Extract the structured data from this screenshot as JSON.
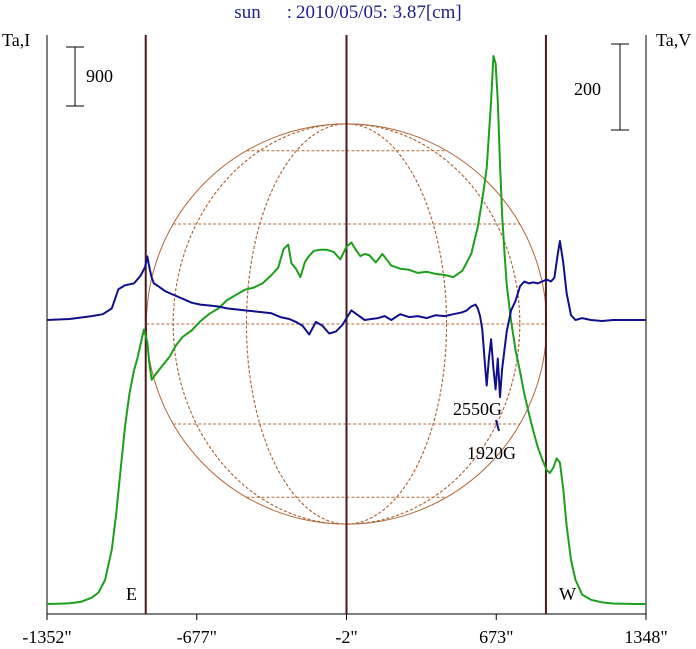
{
  "title": {
    "object": "sun",
    "separator": ":",
    "info": "2010/05/05: 3.87[cm]",
    "color": "#1f1f8f"
  },
  "axes": {
    "left_label": "Ta,I",
    "right_label": "Ta,V",
    "left_scale_bar": "900",
    "right_scale_bar": "200"
  },
  "markers": {
    "east": "E",
    "west": "W"
  },
  "annotations": {
    "field_1": "2550G",
    "field_2": "1920G"
  },
  "colors": {
    "intensity": "#1ca01c",
    "polarization": "#10108c",
    "limb_lines": "#4a1a1a",
    "grid": "#b0683a",
    "frame": "#000000"
  },
  "chart_data": {
    "type": "line",
    "title": "sun : 2010/05/05: 3.87[cm]",
    "xlabel": "",
    "ylabel_left": "Ta,I",
    "ylabel_right": "Ta,V",
    "x_ticks": [
      -1352,
      -677,
      -2,
      673,
      1348
    ],
    "x_tick_labels": [
      "-1352\"",
      "-677\"",
      "-2\"",
      "673\"",
      "1348\""
    ],
    "xlim": [
      -1352,
      1348
    ],
    "limb_positions": [
      -907,
      -2,
      897
    ],
    "grid": false,
    "legend": "none",
    "series": [
      {
        "key": "intensity",
        "x": [
          -1352,
          -1300,
          -1250,
          -1200,
          -1150,
          -1120,
          -1090,
          -1060,
          -1040,
          -1020,
          -1000,
          -980,
          -960,
          -945,
          -930,
          -915,
          -900,
          -890,
          -880,
          -860,
          -830,
          -800,
          -770,
          -740,
          -700,
          -660,
          -620,
          -580,
          -540,
          -500,
          -460,
          -420,
          -380,
          -340,
          -310,
          -285,
          -265,
          -250,
          -230,
          -210,
          -190,
          -175,
          -150,
          -120,
          -90,
          -60,
          -30,
          -2,
          20,
          40,
          60,
          80,
          100,
          130,
          160,
          200,
          240,
          280,
          320,
          360,
          400,
          440,
          480,
          520,
          560,
          590,
          610,
          630,
          650,
          660,
          670,
          680,
          690,
          700,
          710,
          720,
          740,
          760,
          780,
          800,
          820,
          840,
          860,
          880,
          900,
          915,
          930,
          945,
          960,
          975,
          990,
          1010,
          1030,
          1060,
          1100,
          1150,
          1200,
          1250,
          1300,
          1348
        ],
        "y": [
          0,
          3,
          8,
          20,
          60,
          110,
          230,
          520,
          860,
          1290,
          1700,
          2010,
          2230,
          2340,
          2480,
          2620,
          2500,
          2280,
          2140,
          2200,
          2280,
          2360,
          2470,
          2550,
          2610,
          2700,
          2770,
          2820,
          2900,
          2950,
          3000,
          3020,
          3060,
          3140,
          3210,
          3390,
          3430,
          3250,
          3200,
          3120,
          3260,
          3310,
          3370,
          3380,
          3380,
          3360,
          3290,
          3410,
          3450,
          3380,
          3320,
          3340,
          3330,
          3260,
          3340,
          3230,
          3200,
          3190,
          3160,
          3170,
          3150,
          3140,
          3120,
          3180,
          3340,
          3600,
          3860,
          4160,
          4800,
          5230,
          5160,
          4800,
          4200,
          3700,
          3350,
          3050,
          2700,
          2420,
          2220,
          2000,
          1820,
          1650,
          1500,
          1380,
          1280,
          1250,
          1300,
          1390,
          1350,
          1100,
          750,
          420,
          230,
          90,
          40,
          15,
          5,
          2,
          0,
          0
        ]
      },
      {
        "key": "polarization",
        "x": [
          -1352,
          -1250,
          -1150,
          -1100,
          -1060,
          -1030,
          -1000,
          -960,
          -930,
          -910,
          -900,
          -890,
          -880,
          -870,
          -850,
          -820,
          -780,
          -740,
          -700,
          -660,
          -620,
          -580,
          -540,
          -500,
          -460,
          -420,
          -380,
          -340,
          -300,
          -260,
          -230,
          -200,
          -170,
          -140,
          -110,
          -80,
          -50,
          -20,
          -2,
          20,
          50,
          80,
          110,
          140,
          170,
          200,
          240,
          280,
          320,
          360,
          400,
          440,
          480,
          520,
          540,
          560,
          580,
          590,
          600,
          610,
          620,
          630,
          640,
          650,
          660,
          670,
          680,
          690,
          700,
          720,
          740,
          760,
          780,
          800,
          820,
          840,
          860,
          880,
          900,
          920,
          935,
          950,
          960,
          975,
          990,
          1010,
          1030,
          1060,
          1100,
          1150,
          1200,
          1250,
          1300,
          1348
        ],
        "y": [
          0,
          1,
          4,
          6,
          12,
          32,
          36,
          38,
          46,
          55,
          66,
          54,
          44,
          38,
          35,
          30,
          26,
          22,
          18,
          16,
          15,
          14,
          12,
          11,
          10,
          9,
          8,
          7,
          3,
          1,
          -2,
          -6,
          -15,
          -2,
          -6,
          -14,
          -12,
          -5,
          2,
          10,
          5,
          0,
          1,
          2,
          4,
          0,
          6,
          3,
          4,
          2,
          5,
          4,
          6,
          8,
          10,
          14,
          16,
          12,
          4,
          -10,
          -40,
          -68,
          -40,
          -20,
          -50,
          -72,
          -40,
          -80,
          -50,
          -12,
          10,
          20,
          35,
          40,
          38,
          39,
          38,
          40,
          42,
          40,
          44,
          68,
          82,
          60,
          28,
          5,
          0,
          2,
          0,
          -1,
          0,
          0,
          0,
          0
        ]
      }
    ]
  }
}
